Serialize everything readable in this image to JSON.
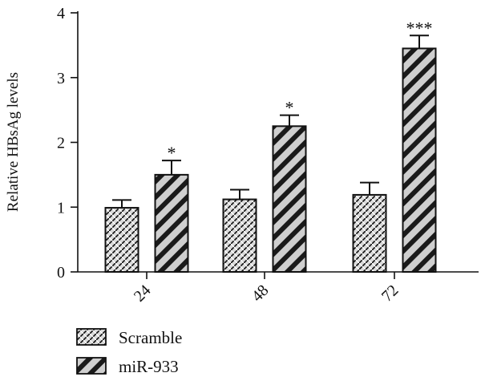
{
  "chart_data": {
    "type": "bar",
    "title": "",
    "xlabel": "",
    "ylabel": "Relative HBsAg levels",
    "ylim": [
      0,
      4
    ],
    "yticks": [
      0,
      1,
      2,
      3,
      4
    ],
    "categories": [
      "24",
      "48",
      "72"
    ],
    "grid": false,
    "legend_position": "bottom-left",
    "series": [
      {
        "name": "Scramble",
        "values": [
          0.99,
          1.12,
          1.19
        ],
        "errors": [
          0.12,
          0.15,
          0.19
        ],
        "pattern": "brick-hatch",
        "color": "#d9d9d9"
      },
      {
        "name": "miR-933",
        "values": [
          1.5,
          2.25,
          3.45
        ],
        "errors": [
          0.22,
          0.17,
          0.2
        ],
        "pattern": "diagonal-stripes",
        "color": "#cfcfcf"
      }
    ],
    "annotations": [
      {
        "category": "24",
        "series": "miR-933",
        "text": "*"
      },
      {
        "category": "48",
        "series": "miR-933",
        "text": "*"
      },
      {
        "category": "72",
        "series": "miR-933",
        "text": "***"
      }
    ]
  }
}
